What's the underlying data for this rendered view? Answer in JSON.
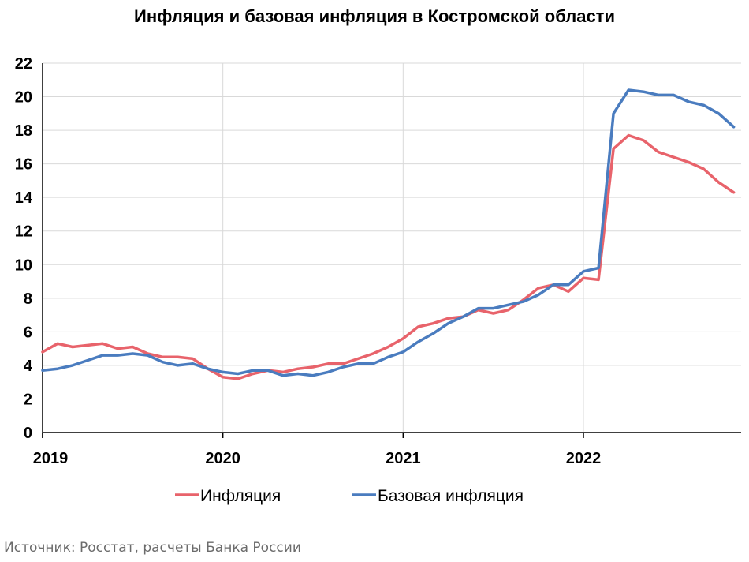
{
  "chart_data": {
    "type": "line",
    "title": "Инфляция и базовая инфляция в Костромской области",
    "xlabel": "",
    "ylabel": "",
    "ylim": [
      0,
      22
    ],
    "yticks": [
      0,
      2,
      4,
      6,
      8,
      10,
      12,
      14,
      16,
      18,
      20,
      22
    ],
    "xticks": [
      "2019",
      "2020",
      "2021",
      "2022"
    ],
    "x_start": "2019-01",
    "grid": true,
    "legend_position": "bottom",
    "series": [
      {
        "name": "Инфляция",
        "color": "#e8636b",
        "values": [
          4.8,
          5.3,
          5.1,
          5.2,
          5.3,
          5.0,
          5.1,
          4.7,
          4.5,
          4.5,
          4.4,
          3.8,
          3.3,
          3.2,
          3.5,
          3.7,
          3.6,
          3.8,
          3.9,
          4.1,
          4.1,
          4.4,
          4.7,
          5.1,
          5.6,
          6.3,
          6.5,
          6.8,
          6.9,
          7.3,
          7.1,
          7.3,
          7.9,
          8.6,
          8.8,
          8.4,
          9.2,
          9.1,
          16.9,
          17.7,
          17.4,
          16.7,
          16.4,
          16.1,
          15.7,
          14.9,
          14.3
        ]
      },
      {
        "name": "Базовая инфляция",
        "color": "#4a7cbf",
        "values": [
          3.7,
          3.8,
          4.0,
          4.3,
          4.6,
          4.6,
          4.7,
          4.6,
          4.2,
          4.0,
          4.1,
          3.8,
          3.6,
          3.5,
          3.7,
          3.7,
          3.4,
          3.5,
          3.4,
          3.6,
          3.9,
          4.1,
          4.1,
          4.5,
          4.8,
          5.4,
          5.9,
          6.5,
          6.9,
          7.4,
          7.4,
          7.6,
          7.8,
          8.2,
          8.8,
          8.8,
          9.6,
          9.8,
          19.0,
          20.4,
          20.3,
          20.1,
          20.1,
          19.7,
          19.5,
          19.0,
          18.2
        ]
      }
    ]
  },
  "footer": {
    "source": "Источник: Росстат, расчеты Банка России"
  }
}
